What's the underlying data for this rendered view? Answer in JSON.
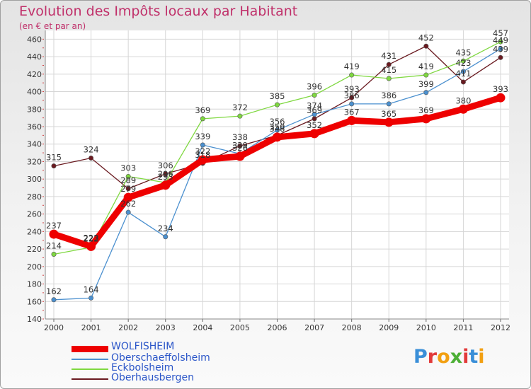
{
  "header": {
    "title": "Evolution des Impôts locaux par Habitant",
    "subtitle": "(en € et par an)"
  },
  "chart_data": {
    "type": "line",
    "title": "Evolution des Impôts locaux par Habitant",
    "subtitle": "(en € et par an)",
    "xlabel": "",
    "ylabel": "",
    "x": [
      "2000",
      "2001",
      "2002",
      "2003",
      "2004",
      "2005",
      "2006",
      "2007",
      "2008",
      "2009",
      "2010",
      "2011",
      "2012"
    ],
    "ylim": [
      140,
      470
    ],
    "yticks": [
      140,
      160,
      180,
      200,
      220,
      240,
      260,
      280,
      300,
      320,
      340,
      360,
      380,
      400,
      420,
      440,
      460
    ],
    "grid": "horizontal",
    "legend_position": "bottom-left",
    "series": [
      {
        "name": "WOLFISHEIM",
        "color": "#ee0000",
        "values": [
          237,
          223,
          279,
          293,
          322,
          326,
          348,
          352,
          367,
          365,
          369,
          380,
          393
        ],
        "labels": [
          "237",
          "223",
          "279",
          "293",
          "322",
          "326",
          "348",
          "352",
          "367",
          "365",
          "369",
          "380",
          "393"
        ]
      },
      {
        "name": "Oberschaeffolsheim",
        "color": "#4b90cf",
        "values": [
          162,
          164,
          262,
          234,
          339,
          329,
          356,
          374,
          386,
          386,
          399,
          423,
          449
        ],
        "labels": [
          "162",
          "164",
          "262",
          "234",
          "339",
          "329",
          "356",
          "374",
          "386",
          "386",
          "399",
          "423",
          "449"
        ]
      },
      {
        "name": "Eckbolsheim",
        "color": "#7fd840",
        "values": [
          214,
          222,
          303,
          296,
          369,
          372,
          385,
          396,
          419,
          415,
          419,
          435,
          457
        ],
        "labels": [
          "214",
          "222",
          "303",
          "296",
          "369",
          "372",
          "385",
          "396",
          "419",
          "415",
          "419",
          "435",
          "457"
        ]
      },
      {
        "name": "Oberhausbergen",
        "color": "#6a1a20",
        "values": [
          315,
          324,
          289,
          306,
          318,
          338,
          350,
          369,
          393,
          431,
          452,
          411,
          439
        ],
        "labels": [
          "315",
          "324",
          "289",
          "306",
          "318",
          "338",
          "350",
          "369",
          "393",
          "431",
          "452",
          "411",
          "439"
        ]
      }
    ]
  },
  "legend": {
    "items": [
      {
        "label": "WOLFISHEIM",
        "color": "#ee0000"
      },
      {
        "label": "Oberschaeffolsheim",
        "color": "#4b90cf"
      },
      {
        "label": "Eckbolsheim",
        "color": "#7fd840"
      },
      {
        "label": "Oberhausbergen",
        "color": "#6a1a20"
      }
    ]
  },
  "logo": {
    "text": "Proxiti",
    "letter_colors": [
      "#3a8fd8",
      "#e23a3a",
      "#f2a012",
      "#4caf35",
      "#e23a3a",
      "#3a8fd8",
      "#f2a012"
    ]
  }
}
